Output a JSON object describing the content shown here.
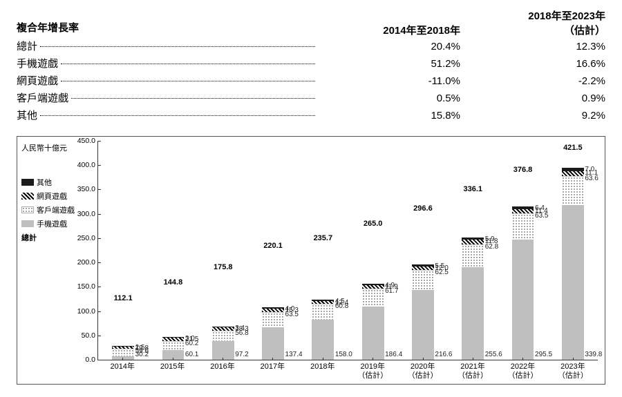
{
  "table": {
    "title": "複合年增長率",
    "col1_line1": "",
    "col1_line2": "2014年至2018年",
    "col2_line1": "2018年至2023年",
    "col2_line2": "（估計）",
    "rows": [
      {
        "label": "總計",
        "c1": "20.4%",
        "c2": "12.3%"
      },
      {
        "label": "手機遊戲",
        "c1": "51.2%",
        "c2": "16.6%"
      },
      {
        "label": "網頁遊戲",
        "c1": "-11.0%",
        "c2": "-2.2%"
      },
      {
        "label": "客戶端遊戲",
        "c1": "0.5%",
        "c2": "0.9%"
      },
      {
        "label": "其他",
        "c1": "15.8%",
        "c2": "9.2%"
      }
    ]
  },
  "chart": {
    "y_title": "人民幣十億元",
    "y_max": 450,
    "y_step": 50,
    "legend": {
      "other": "其他",
      "web": "網頁遊戲",
      "client": "客戶端遊戲",
      "mobile": "手機遊戲",
      "total": "總計"
    },
    "colors": {
      "mobile": "#bfbfbf",
      "other": "#1b1b1b",
      "text": "#000000",
      "border": "#555555",
      "bg": "#ffffff"
    },
    "segments_order": [
      "mobile",
      "client",
      "web",
      "other"
    ],
    "x": [
      {
        "label": "2014年",
        "sub": "",
        "total": "112.1",
        "mobile": 30.2,
        "client": 59.6,
        "web": 19.8,
        "other": 2.5
      },
      {
        "label": "2015年",
        "sub": "",
        "total": "144.8",
        "mobile": 60.1,
        "client": 60.2,
        "web": 21.5,
        "other": 3.0
      },
      {
        "label": "2016年",
        "sub": "",
        "total": "175.8",
        "mobile": 97.2,
        "client": 56.8,
        "web": 18.3,
        "other": 3.4
      },
      {
        "label": "2017年",
        "sub": "",
        "total": "220.1",
        "mobile": 137.4,
        "client": 63.5,
        "web": 15.3,
        "other": 4.0
      },
      {
        "label": "2018年",
        "sub": "",
        "total": "235.7",
        "mobile": 158.0,
        "client": 60.8,
        "web": 12.4,
        "other": 4.5
      },
      {
        "label": "2019年",
        "sub": "（估計）",
        "total": "265.0",
        "mobile": 186.4,
        "client": 61.7,
        "web": 11.9,
        "other": 4.9
      },
      {
        "label": "2020年",
        "sub": "（估計）",
        "total": "296.6",
        "mobile": 216.6,
        "client": 62.5,
        "web": 12.0,
        "other": 5.5
      },
      {
        "label": "2021年",
        "sub": "（估計）",
        "total": "336.1",
        "mobile": 255.6,
        "client": 62.8,
        "web": 11.8,
        "other": 5.9
      },
      {
        "label": "2022年",
        "sub": "（估計）",
        "total": "376.8",
        "mobile": 295.5,
        "client": 63.5,
        "web": 11.4,
        "other": 6.4
      },
      {
        "label": "2023年",
        "sub": "（估計）",
        "total": "421.5",
        "mobile": 339.8,
        "client": 63.6,
        "web": 11.1,
        "other": 7.0
      }
    ]
  }
}
